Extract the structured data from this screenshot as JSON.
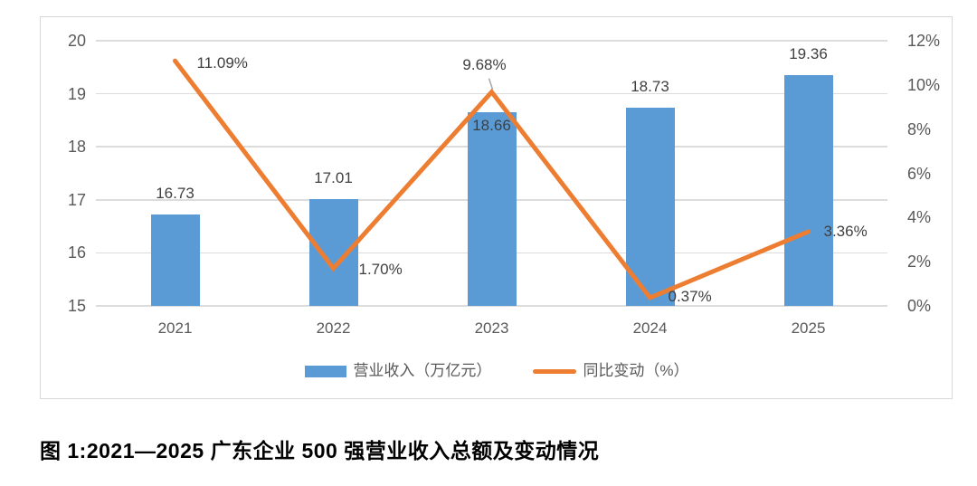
{
  "figure_caption": "图 1:2021—2025 广东企业 500 强营业收入总额及变动情况",
  "colors": {
    "bar": "#5B9BD5",
    "line": "#ED7D31",
    "axis_text": "#595959",
    "data_label_text": "#3f3f3f",
    "gridline": "#dcdcdc",
    "leader_line": "#a6a6a6",
    "caption_text": "#000000",
    "card_border": "#d8d8d8"
  },
  "chart_data": {
    "type": "bar+line combo",
    "categories": [
      "2021",
      "2022",
      "2023",
      "2024",
      "2025"
    ],
    "series": [
      {
        "name": "营业收入（万亿元）",
        "type": "bar",
        "axis": "left",
        "color": "#5B9BD5",
        "values": [
          16.73,
          17.01,
          18.66,
          18.73,
          19.36
        ],
        "labels": [
          "16.73",
          "17.01",
          "18.66",
          "18.73",
          "19.36"
        ]
      },
      {
        "name": "同比变动（%）",
        "type": "line",
        "axis": "right",
        "color": "#ED7D31",
        "values": [
          11.09,
          1.7,
          9.68,
          0.37,
          3.36
        ],
        "labels": [
          "11.09%",
          "1.70%",
          "9.68%",
          "0.37%",
          "3.36%"
        ]
      }
    ],
    "left_axis": {
      "min": 15,
      "max": 20,
      "step": 1,
      "ticks": [
        "20",
        "19",
        "18",
        "17",
        "16",
        "15"
      ]
    },
    "right_axis": {
      "min": 0,
      "max": 12,
      "step": 2,
      "ticks": [
        "12%",
        "10%",
        "8%",
        "6%",
        "4%",
        "2%",
        "0%"
      ]
    },
    "grid": true,
    "legend_position": "bottom"
  }
}
